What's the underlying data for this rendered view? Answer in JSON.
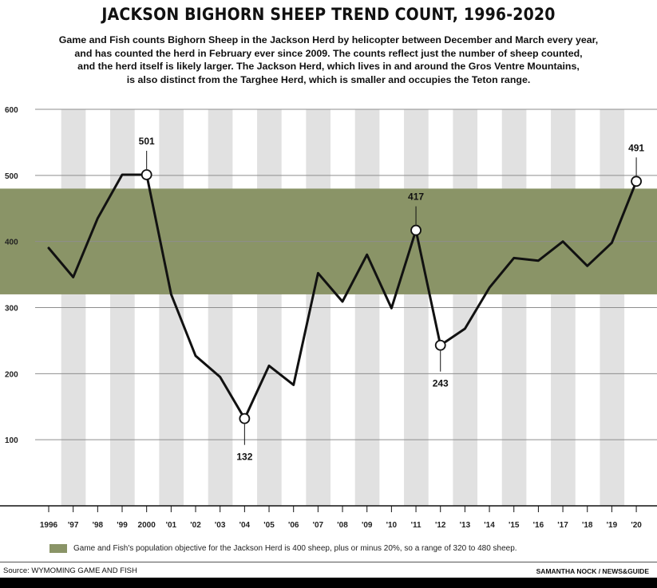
{
  "chart_data": {
    "type": "line",
    "title": "JACKSON BIGHORN SHEEP TREND COUNT, 1996-2020",
    "subtitle": [
      "Game and Fish counts Bighorn Sheep in the Jackson Herd by helicopter between December and March every year,",
      "and has counted the herd in February ever since 2009. The counts reflect just the number of sheep counted,",
      "and the herd itself is likely larger. The Jackson Herd, which lives in and around the Gros Ventre Mountains,",
      "is also distinct from the Targhee Herd, which is smaller and occupies the Teton range."
    ],
    "x": [
      1996,
      1997,
      1998,
      1999,
      2000,
      2001,
      2002,
      2003,
      2004,
      2005,
      2006,
      2007,
      2008,
      2009,
      2010,
      2011,
      2012,
      2013,
      2014,
      2015,
      2016,
      2017,
      2018,
      2019,
      2020
    ],
    "x_tick_labels": [
      "1996",
      "'97",
      "'98",
      "'99",
      "2000",
      "'01",
      "'02",
      "'03",
      "'04",
      "'05",
      "'06",
      "'07",
      "'08",
      "'09",
      "'10",
      "'11",
      "'12",
      "'13",
      "'14",
      "'15",
      "'16",
      "'17",
      "'18",
      "'19",
      "'20"
    ],
    "series": [
      {
        "values": [
          390,
          346,
          435,
          501,
          501,
          320,
          227,
          195,
          132,
          212,
          183,
          352,
          309,
          380,
          299,
          417,
          243,
          268,
          330,
          375,
          371,
          400,
          363,
          398,
          491
        ]
      }
    ],
    "y_ticks": [
      100,
      200,
      300,
      400,
      500,
      600
    ],
    "ylim": [
      0,
      600
    ],
    "annotations": [
      {
        "x": 2000,
        "y": 501,
        "label": "501",
        "position": "above"
      },
      {
        "x": 2004,
        "y": 132,
        "label": "132",
        "position": "below"
      },
      {
        "x": 2011,
        "y": 417,
        "label": "417",
        "position": "above"
      },
      {
        "x": 2012,
        "y": 243,
        "label": "243",
        "position": "below"
      },
      {
        "x": 2020,
        "y": 491,
        "label": "491",
        "position": "above"
      }
    ],
    "objective_band": [
      320,
      480
    ],
    "legend_text": "Game and Fish's population objective for the Jackson Herd is 400 sheep, plus or minus 20%, so a range of 320 to 480 sheep.",
    "colors": {
      "line": "#111111",
      "band": "#8a9467",
      "stripe": "#e1e1e1",
      "grid": "#8e8e8e",
      "marker_fill": "#ffffff"
    },
    "grid": true
  },
  "source_text": "Source: WYMOMING GAME AND FISH",
  "credit_text": "SAMANTHA NOCK / NEWS&GUIDE"
}
